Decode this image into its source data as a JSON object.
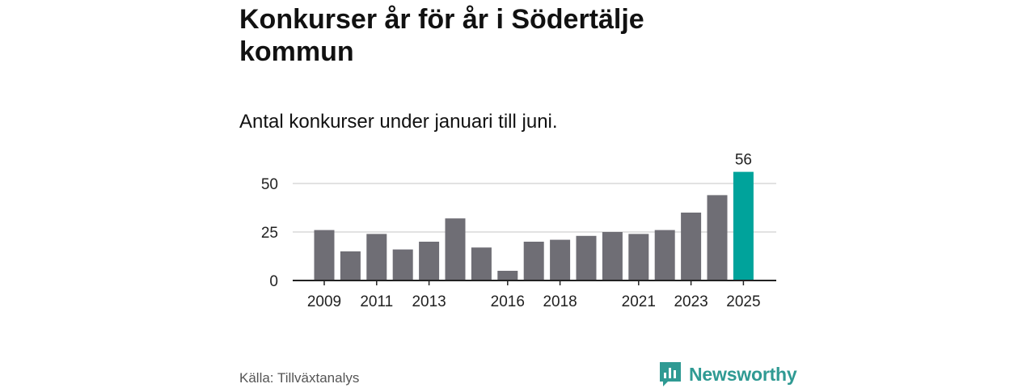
{
  "title": "Konkurser år för år i Södertälje kommun",
  "subtitle": "Antal konkurser under januari till juni.",
  "source": "Källa: Tillväxtanalys",
  "brand": {
    "name": "Newsworthy",
    "icon": "newsworthy-logo-icon",
    "color": "#2f9a93"
  },
  "chart_data": {
    "type": "bar",
    "categories": [
      "2009",
      "2010",
      "2011",
      "2012",
      "2013",
      "2014",
      "2015",
      "2016",
      "2017",
      "2018",
      "2019",
      "2020",
      "2021",
      "2022",
      "2023",
      "2024",
      "2025"
    ],
    "values": [
      26,
      15,
      24,
      16,
      20,
      32,
      17,
      5,
      20,
      21,
      23,
      25,
      24,
      26,
      35,
      44,
      56
    ],
    "x_tick_labels": [
      "2009",
      "2011",
      "2013",
      "2016",
      "2018",
      "2021",
      "2023",
      "2025"
    ],
    "y_ticks": [
      0,
      25,
      50
    ],
    "ylim": [
      0,
      60
    ],
    "highlight": {
      "category": "2025",
      "value_label": "56"
    },
    "colors": {
      "bar": "#6f6e75",
      "highlight": "#00a39b",
      "grid": "#d9d9d9",
      "axis": "#222222"
    },
    "grid": true
  }
}
